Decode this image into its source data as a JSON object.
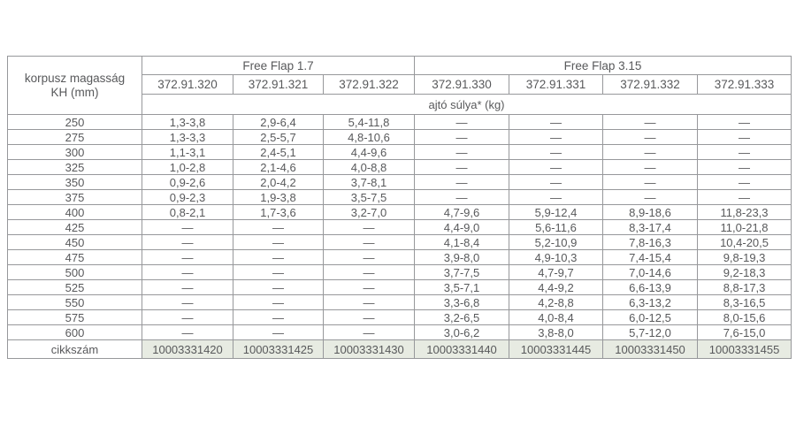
{
  "table": {
    "corner_header_line1": "korpusz magasság",
    "corner_header_line2": "KH (mm)",
    "groups": [
      {
        "label": "Free Flap 1.7",
        "colspan": 3
      },
      {
        "label": "Free Flap 3.15",
        "colspan": 4
      }
    ],
    "model_codes": [
      "372.91.320",
      "372.91.321",
      "372.91.322",
      "372.91.330",
      "372.91.331",
      "372.91.332",
      "372.91.333"
    ],
    "weight_header": "ajtó súlya* (kg)",
    "rows": [
      {
        "kh": "250",
        "values": [
          "1,3-3,8",
          "2,9-6,4",
          "5,4-11,8",
          "—",
          "—",
          "—",
          "—"
        ]
      },
      {
        "kh": "275",
        "values": [
          "1,3-3,3",
          "2,5-5,7",
          "4,8-10,6",
          "—",
          "—",
          "—",
          "—"
        ]
      },
      {
        "kh": "300",
        "values": [
          "1,1-3,1",
          "2,4-5,1",
          "4,4-9,6",
          "—",
          "—",
          "—",
          "—"
        ]
      },
      {
        "kh": "325",
        "values": [
          "1,0-2,8",
          "2,1-4,6",
          "4,0-8,8",
          "—",
          "—",
          "—",
          "—"
        ]
      },
      {
        "kh": "350",
        "values": [
          "0,9-2,6",
          "2,0-4,2",
          "3,7-8,1",
          "—",
          "—",
          "—",
          "—"
        ]
      },
      {
        "kh": "375",
        "values": [
          "0,9-2,3",
          "1,9-3,8",
          "3,5-7,5",
          "—",
          "—",
          "—",
          "—"
        ]
      },
      {
        "kh": "400",
        "values": [
          "0,8-2,1",
          "1,7-3,6",
          "3,2-7,0",
          "4,7-9,6",
          "5,9-12,4",
          "8,9-18,6",
          "11,8-23,3"
        ]
      },
      {
        "kh": "425",
        "values": [
          "—",
          "—",
          "—",
          "4,4-9,0",
          "5,6-11,6",
          "8,3-17,4",
          "11,0-21,8"
        ]
      },
      {
        "kh": "450",
        "values": [
          "—",
          "—",
          "—",
          "4,1-8,4",
          "5,2-10,9",
          "7,8-16,3",
          "10,4-20,5"
        ]
      },
      {
        "kh": "475",
        "values": [
          "—",
          "—",
          "—",
          "3,9-8,0",
          "4,9-10,3",
          "7,4-15,4",
          "9,8-19,3"
        ]
      },
      {
        "kh": "500",
        "values": [
          "—",
          "—",
          "—",
          "3,7-7,5",
          "4,7-9,7",
          "7,0-14,6",
          "9,2-18,3"
        ]
      },
      {
        "kh": "525",
        "values": [
          "—",
          "—",
          "—",
          "3,5-7,1",
          "4,4-9,2",
          "6,6-13,9",
          "8,8-17,3"
        ]
      },
      {
        "kh": "550",
        "values": [
          "—",
          "—",
          "—",
          "3,3-6,8",
          "4,2-8,8",
          "6,3-13,2",
          "8,3-16,5"
        ]
      },
      {
        "kh": "575",
        "values": [
          "—",
          "—",
          "—",
          "3,2-6,5",
          "4,0-8,4",
          "6,0-12,5",
          "8,0-15,6"
        ]
      },
      {
        "kh": "600",
        "values": [
          "—",
          "—",
          "—",
          "3,0-6,2",
          "3,8-8,0",
          "5,7-12,0",
          "7,6-15,0"
        ]
      }
    ],
    "footer_label": "cikkszám",
    "article_numbers": [
      "10003331420",
      "10003331425",
      "10003331430",
      "10003331440",
      "10003331445",
      "10003331450",
      "10003331455"
    ]
  },
  "colors": {
    "article_row_bg": "#e7ebe2",
    "text": "#58595b",
    "border_outer": "#7b7c7e",
    "border_inner": "#97989b",
    "border_row_separator": "#c3c4c6"
  }
}
